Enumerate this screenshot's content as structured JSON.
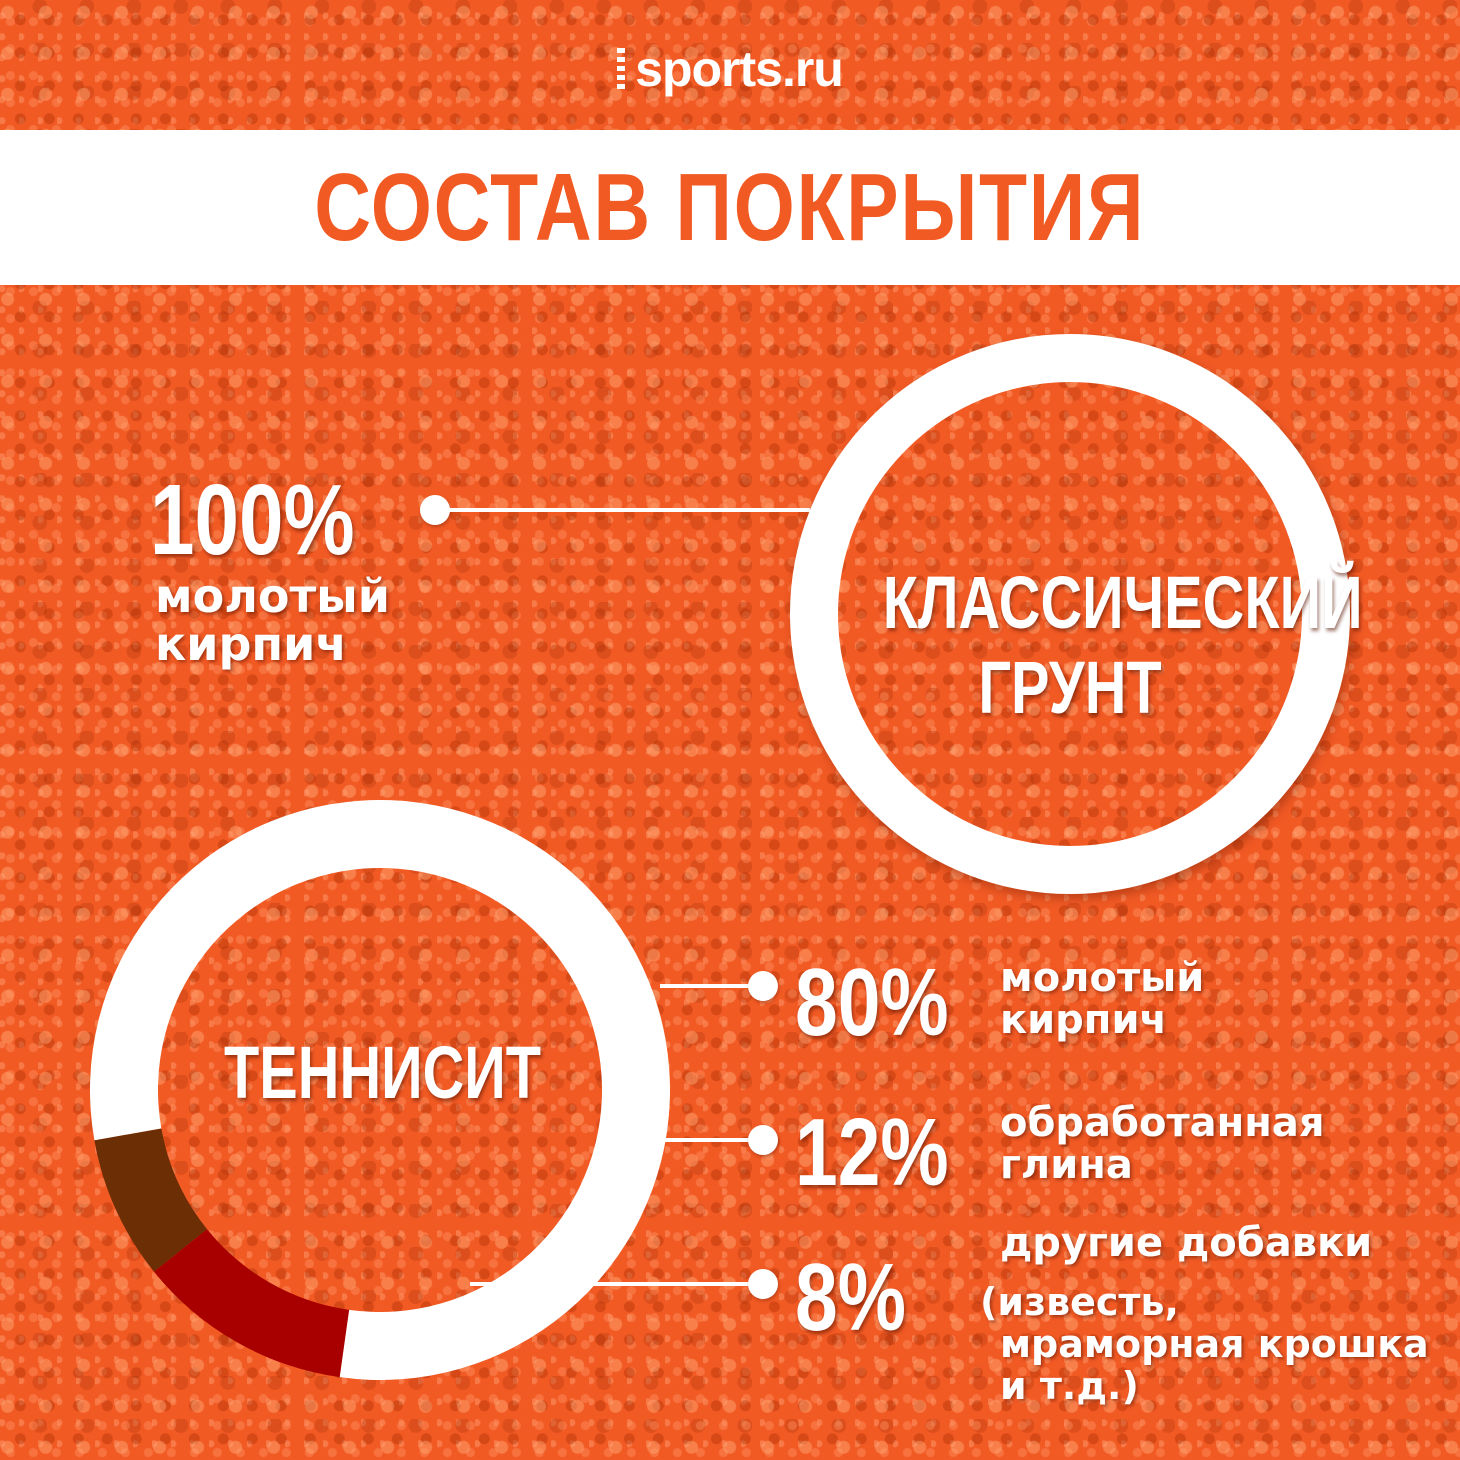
{
  "brand": {
    "logo_text": "sports.ru"
  },
  "title": "СОСТАВ ПОКРЫТИЯ",
  "classic": {
    "label_lines": [
      "КЛАССИЧЕСКИЙ",
      "ГРУНТ"
    ],
    "percent": "100%",
    "desc_lines": [
      "молотый",
      "кирпич"
    ]
  },
  "tennisite": {
    "label": "ТЕННИСИТ",
    "segments": [
      {
        "percent": "80%",
        "value": 80,
        "desc_lines": [
          "молотый",
          "кирпич"
        ],
        "color": "#ffffff"
      },
      {
        "percent": "12%",
        "value": 12,
        "desc_lines": [
          "обработанная",
          "глина"
        ],
        "color": "#a80000"
      },
      {
        "percent": "8%",
        "value": 8,
        "desc_lines": [
          "другие добавки",
          "(известь,",
          "мраморная крошка",
          "и т.д.)"
        ],
        "color": "#6b2e05"
      }
    ]
  }
}
